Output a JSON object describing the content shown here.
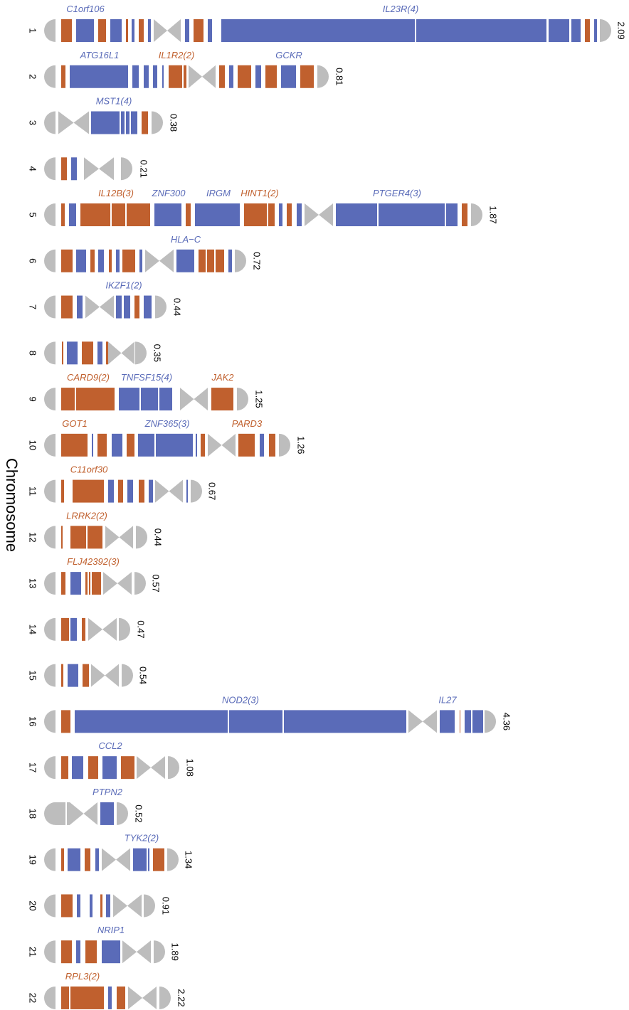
{
  "y_axis_label": "Chromosome",
  "chromosomes": [
    {
      "label": "1",
      "value": 2.09,
      "genes": [
        {
          "name": "C1orf106",
          "color": "#5a6bb8"
        },
        {
          "name": "IL23R(4)",
          "color": "#5a6bb8"
        }
      ]
    },
    {
      "label": "2",
      "value": 0.81,
      "genes": [
        {
          "name": "ATG16L1",
          "color": "#5a6bb8"
        },
        {
          "name": "IL1R2(2)",
          "color": "#c0602e"
        },
        {
          "name": "GCKR",
          "color": "#5a6bb8"
        }
      ]
    },
    {
      "label": "3",
      "value": 0.38,
      "genes": [
        {
          "name": "MST1(4)",
          "color": "#5a6bb8"
        }
      ]
    },
    {
      "label": "4",
      "value": 0.21,
      "genes": []
    },
    {
      "label": "5",
      "value": 1.87,
      "genes": [
        {
          "name": "IL12B(3)",
          "color": "#c0602e"
        },
        {
          "name": "ZNF300",
          "color": "#5a6bb8"
        },
        {
          "name": "IRGM",
          "color": "#5a6bb8"
        },
        {
          "name": "HINT1(2)",
          "color": "#c0602e"
        },
        {
          "name": "PTGER4(3)",
          "color": "#5a6bb8"
        }
      ]
    },
    {
      "label": "6",
      "value": 0.72,
      "genes": [
        {
          "name": "HLA−C",
          "color": "#5a6bb8"
        }
      ]
    },
    {
      "label": "7",
      "value": 0.44,
      "genes": [
        {
          "name": "IKZF1(2)",
          "color": "#5a6bb8"
        }
      ]
    },
    {
      "label": "8",
      "value": 0.35,
      "genes": []
    },
    {
      "label": "9",
      "value": 1.25,
      "genes": [
        {
          "name": "CARD9(2)",
          "color": "#c0602e"
        },
        {
          "name": "TNFSF15(4)",
          "color": "#5a6bb8"
        },
        {
          "name": "JAK2",
          "color": "#c0602e"
        }
      ]
    },
    {
      "label": "10",
      "value": 1.26,
      "genes": [
        {
          "name": "GOT1",
          "color": "#c0602e"
        },
        {
          "name": "ZNF365(3)",
          "color": "#5a6bb8"
        },
        {
          "name": "PARD3",
          "color": "#c0602e"
        }
      ]
    },
    {
      "label": "11",
      "value": 0.67,
      "genes": [
        {
          "name": "C11orf30",
          "color": "#c0602e"
        }
      ]
    },
    {
      "label": "12",
      "value": 0.44,
      "genes": [
        {
          "name": "LRRK2(2)",
          "color": "#c0602e"
        }
      ]
    },
    {
      "label": "13",
      "value": 0.57,
      "genes": [
        {
          "name": "FLJ42392(3)",
          "color": "#c0602e"
        }
      ]
    },
    {
      "label": "14",
      "value": 0.47,
      "genes": []
    },
    {
      "label": "15",
      "value": 0.54,
      "genes": []
    },
    {
      "label": "16",
      "value": 4.36,
      "genes": [
        {
          "name": "NOD2(3)",
          "color": "#5a6bb8"
        },
        {
          "name": "IL27",
          "color": "#5a6bb8"
        }
      ]
    },
    {
      "label": "17",
      "value": 1.08,
      "genes": [
        {
          "name": "CCL2",
          "color": "#5a6bb8"
        }
      ]
    },
    {
      "label": "18",
      "value": 0.52,
      "genes": [
        {
          "name": "PTPN2",
          "color": "#5a6bb8"
        }
      ]
    },
    {
      "label": "19",
      "value": 1.34,
      "genes": [
        {
          "name": "TYK2(2)",
          "color": "#5a6bb8"
        }
      ]
    },
    {
      "label": "20",
      "value": 0.91,
      "genes": []
    },
    {
      "label": "21",
      "value": 1.89,
      "genes": [
        {
          "name": "NRIP1",
          "color": "#5a6bb8"
        }
      ]
    },
    {
      "label": "22",
      "value": 2.22,
      "genes": [
        {
          "name": "RPL3(2)",
          "color": "#c0602e"
        }
      ]
    }
  ]
}
